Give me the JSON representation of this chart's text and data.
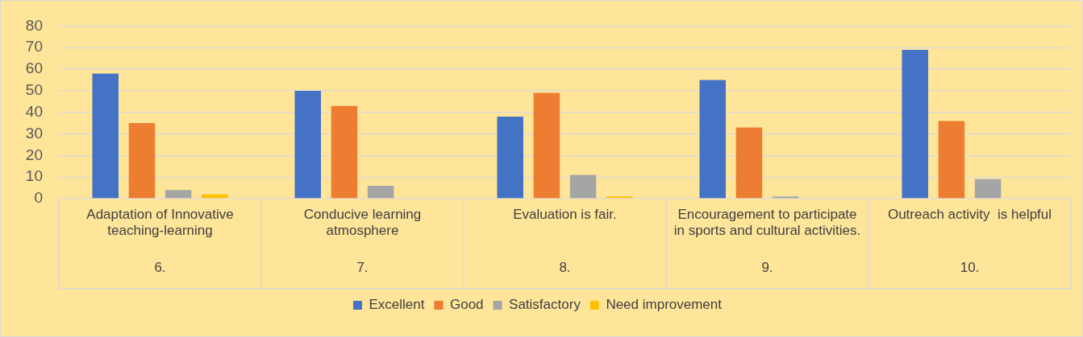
{
  "chart_data": {
    "type": "bar",
    "categories": [
      "Adaptation of Innovative teaching-learning",
      "Conducive learning atmosphere",
      "Evaluation is fair.",
      "Encouragement to participate in sports and cultural activities.",
      "Outreach activity  is helpful"
    ],
    "series": [
      {
        "name": "Excellent",
        "color": "#4472c4",
        "values": [
          58,
          50,
          38,
          55,
          69
        ]
      },
      {
        "name": "Good",
        "color": "#ed7d31",
        "values": [
          35,
          43,
          49,
          33,
          36
        ]
      },
      {
        "name": "Satisfactory",
        "color": "#a5a5a5",
        "values": [
          4,
          6,
          11,
          1,
          9
        ]
      },
      {
        "name": "Need improvement",
        "color": "#ffc000",
        "values": [
          2,
          0,
          1,
          0,
          0
        ]
      }
    ],
    "annotations": [
      "6.",
      "7.",
      "8.",
      "9.",
      "10."
    ],
    "ylim": [
      0,
      80
    ],
    "yticks": [
      0,
      10,
      20,
      30,
      40,
      50,
      60,
      70,
      80
    ],
    "grid": "y",
    "legend": "bottom"
  }
}
